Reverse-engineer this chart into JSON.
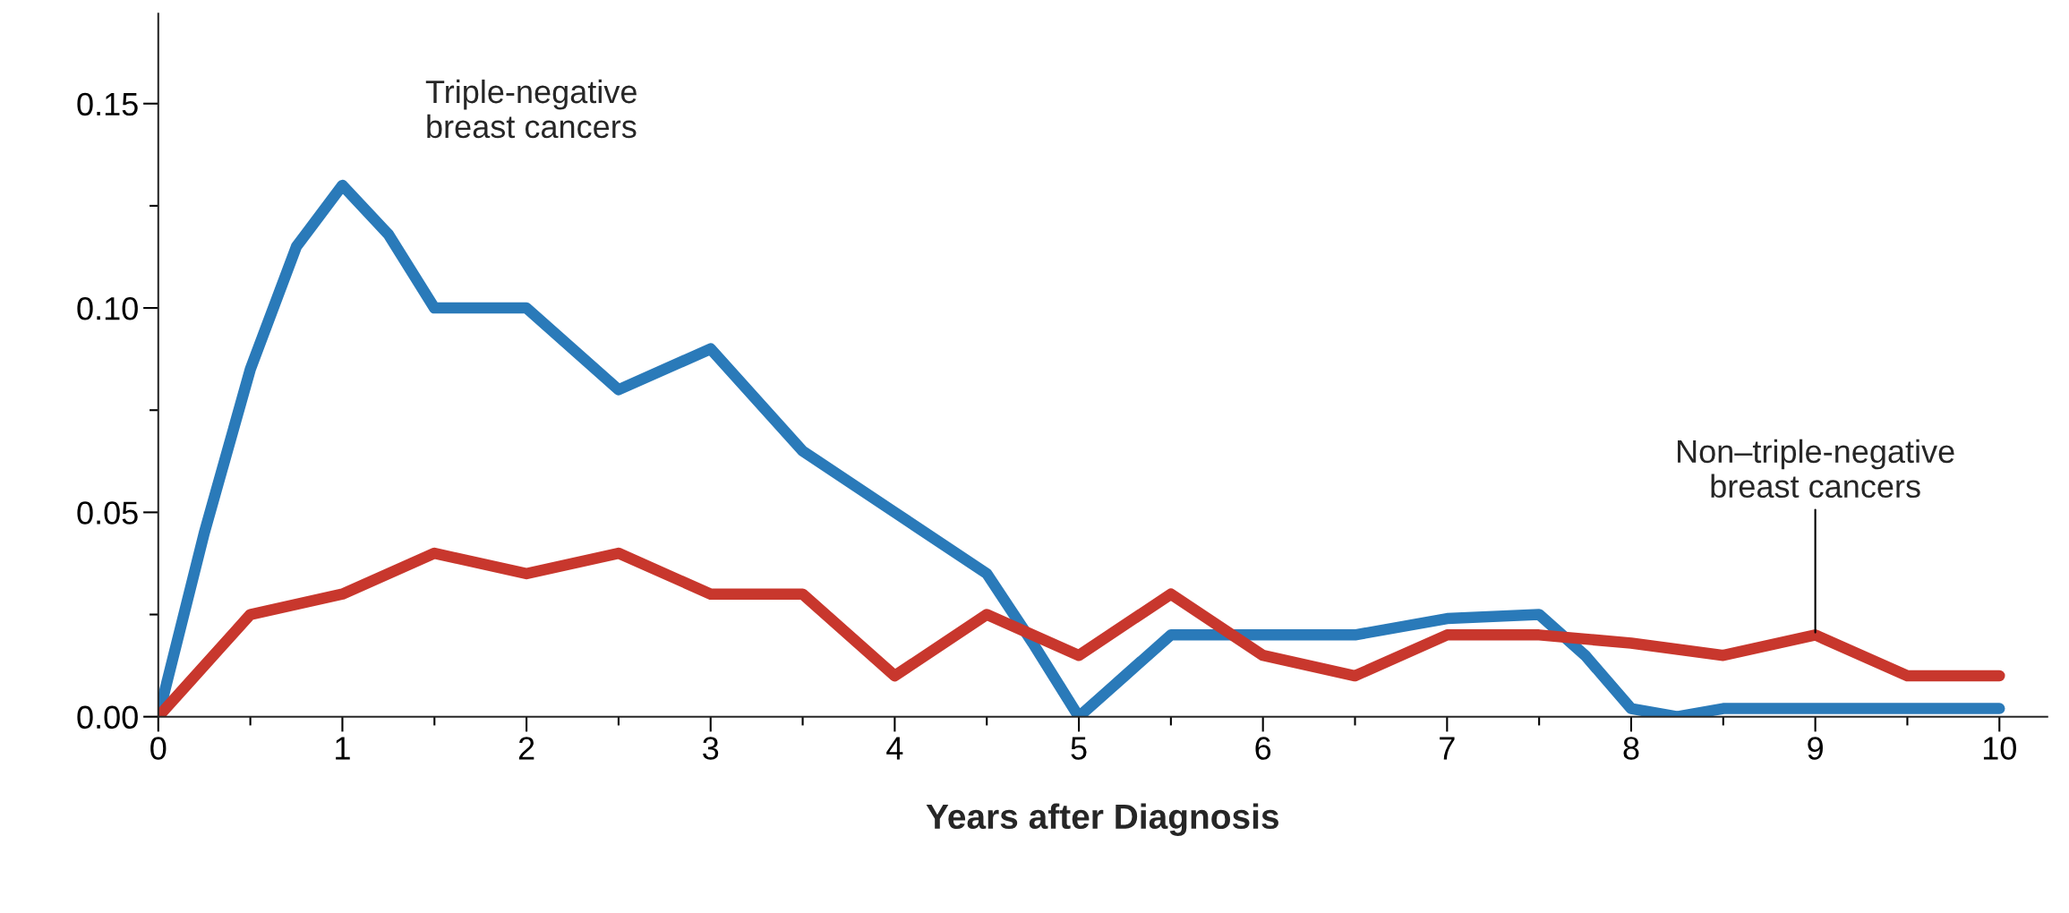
{
  "chart_data": {
    "type": "line",
    "xlabel": "Years after Diagnosis",
    "xlim": [
      0,
      10.26
    ],
    "ylim": [
      0,
      0.172
    ],
    "xticks": [
      0,
      1,
      2,
      3,
      4,
      5,
      6,
      7,
      8,
      9,
      10
    ],
    "yticks": [
      {
        "value": 0,
        "label": "0.00"
      },
      {
        "value": 0.05,
        "label": "0.05"
      },
      {
        "value": 0.1,
        "label": "0.10"
      },
      {
        "value": 0.15,
        "label": "0.15"
      }
    ],
    "grid": false,
    "marker": "none",
    "line_style": "solid",
    "series": [
      {
        "color": "#2a7ab9",
        "x": [
          0,
          0.25,
          0.5,
          0.75,
          1,
          1.25,
          1.5,
          2,
          2.5,
          3,
          3.5,
          4,
          4.5,
          4.75,
          5,
          5.25,
          5.5,
          6,
          6.5,
          7,
          7.5,
          7.75,
          8,
          8.25,
          8.5,
          9,
          10
        ],
        "values": [
          0,
          0.045,
          0.085,
          0.115,
          0.13,
          0.118,
          0.1,
          0.1,
          0.08,
          0.09,
          0.065,
          0.05,
          0.035,
          0.018,
          0,
          0.01,
          0.02,
          0.02,
          0.02,
          0.024,
          0.025,
          0.015,
          0.002,
          0,
          0.002,
          0.002,
          0.002
        ]
      },
      {
        "color": "#c8372d",
        "x": [
          0,
          0.5,
          1,
          1.5,
          2,
          2.5,
          3,
          3.5,
          4,
          4.5,
          5,
          5.5,
          6,
          6.5,
          7,
          7.5,
          8,
          8.5,
          9,
          9.5,
          10
        ],
        "values": [
          0,
          0.025,
          0.03,
          0.04,
          0.035,
          0.04,
          0.03,
          0.03,
          0.01,
          0.025,
          0.015,
          0.03,
          0.015,
          0.01,
          0.02,
          0.02,
          0.018,
          0.015,
          0.02,
          0.01,
          0.01
        ]
      }
    ],
    "annotations": [
      {
        "text": "Triple-negative\nbreast cancers",
        "x": 1,
        "y": 0.13
      },
      {
        "text": "Non–triple-negative\nbreast cancers",
        "x": 9,
        "y": 0.02
      }
    ]
  }
}
